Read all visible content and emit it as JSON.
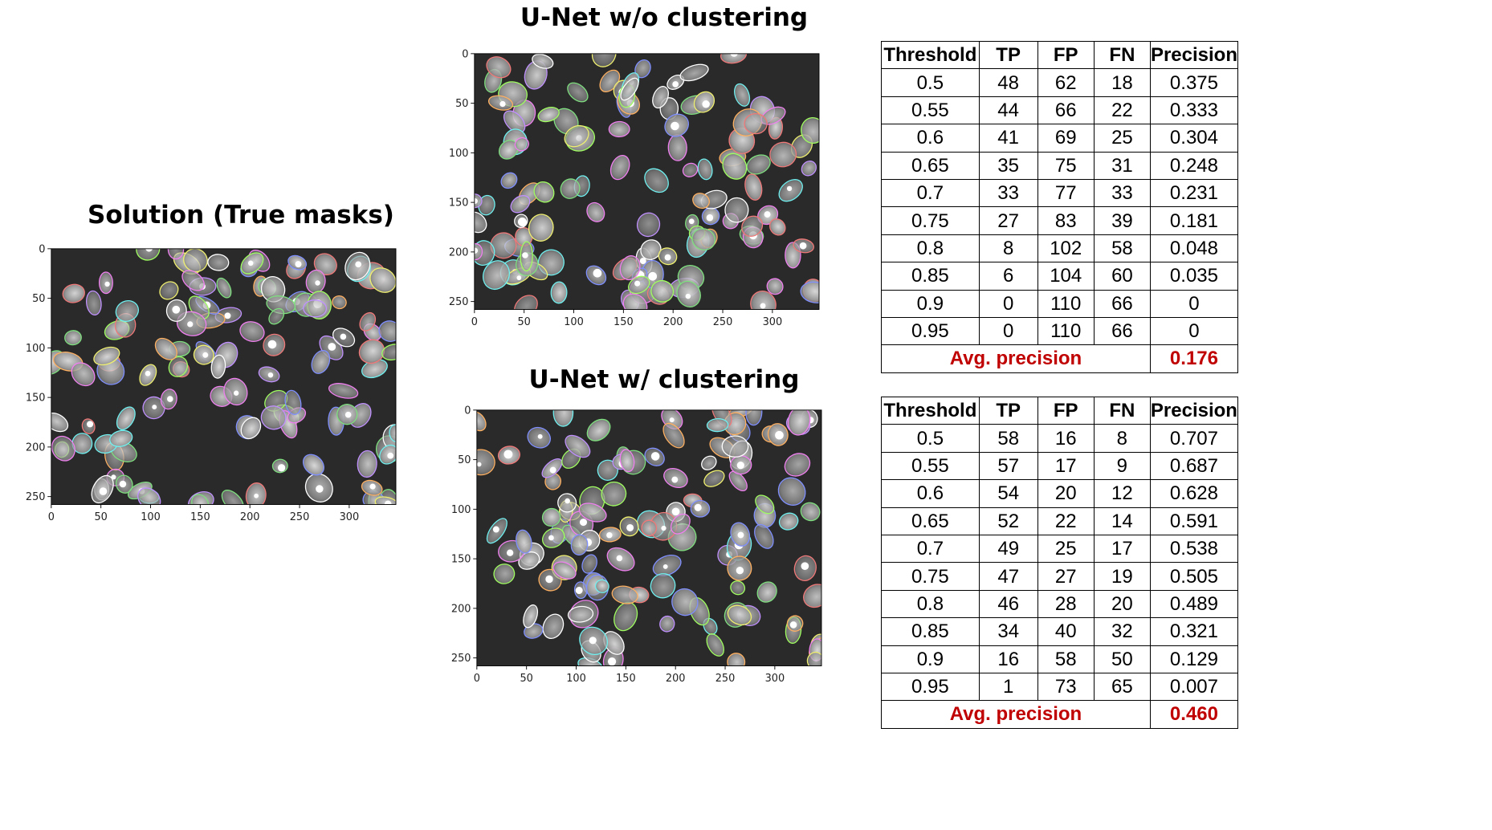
{
  "panels": [
    {
      "id": "solution",
      "title": "Solution (True masks)",
      "x_ticks": [
        "0",
        "50",
        "100",
        "150",
        "200",
        "250",
        "300"
      ],
      "y_ticks": [
        "0",
        "50",
        "100",
        "150",
        "200",
        "250"
      ]
    },
    {
      "id": "unet_no_clustering",
      "title": "U-Net w/o clustering",
      "x_ticks": [
        "0",
        "50",
        "100",
        "150",
        "200",
        "250",
        "300"
      ],
      "y_ticks": [
        "0",
        "50",
        "100",
        "150",
        "200",
        "250"
      ]
    },
    {
      "id": "unet_clustering",
      "title": "U-Net w/ clustering",
      "x_ticks": [
        "0",
        "50",
        "100",
        "150",
        "200",
        "250",
        "300"
      ],
      "y_ticks": [
        "0",
        "50",
        "100",
        "150",
        "200",
        "250"
      ]
    }
  ],
  "tables": [
    {
      "id": "table_no_clustering",
      "headers": [
        "Threshold",
        "TP",
        "FP",
        "FN",
        "Precision"
      ],
      "rows": [
        [
          "0.5",
          "48",
          "62",
          "18",
          "0.375"
        ],
        [
          "0.55",
          "44",
          "66",
          "22",
          "0.333"
        ],
        [
          "0.6",
          "41",
          "69",
          "25",
          "0.304"
        ],
        [
          "0.65",
          "35",
          "75",
          "31",
          "0.248"
        ],
        [
          "0.7",
          "33",
          "77",
          "33",
          "0.231"
        ],
        [
          "0.75",
          "27",
          "83",
          "39",
          "0.181"
        ],
        [
          "0.8",
          "8",
          "102",
          "58",
          "0.048"
        ],
        [
          "0.85",
          "6",
          "104",
          "60",
          "0.035"
        ],
        [
          "0.9",
          "0",
          "110",
          "66",
          "0"
        ],
        [
          "0.95",
          "0",
          "110",
          "66",
          "0"
        ]
      ],
      "avg_label": "Avg. precision",
      "avg_value": "0.176"
    },
    {
      "id": "table_clustering",
      "headers": [
        "Threshold",
        "TP",
        "FP",
        "FN",
        "Precision"
      ],
      "rows": [
        [
          "0.5",
          "58",
          "16",
          "8",
          "0.707"
        ],
        [
          "0.55",
          "57",
          "17",
          "9",
          "0.687"
        ],
        [
          "0.6",
          "54",
          "20",
          "12",
          "0.628"
        ],
        [
          "0.65",
          "52",
          "22",
          "14",
          "0.591"
        ],
        [
          "0.7",
          "49",
          "25",
          "17",
          "0.538"
        ],
        [
          "0.75",
          "47",
          "27",
          "19",
          "0.505"
        ],
        [
          "0.8",
          "46",
          "28",
          "20",
          "0.489"
        ],
        [
          "0.85",
          "34",
          "40",
          "32",
          "0.321"
        ],
        [
          "0.9",
          "16",
          "58",
          "50",
          "0.129"
        ],
        [
          "0.95",
          "1",
          "73",
          "65",
          "0.007"
        ]
      ],
      "avg_label": "Avg. precision",
      "avg_value": "0.460"
    }
  ],
  "colors": {
    "image_background": "#2a2a2a",
    "avg_text": "#c00000",
    "outline_palette": [
      "#f07878",
      "#7fe07f",
      "#7f8fff",
      "#f0f070",
      "#f080f0",
      "#70f0f0",
      "#ffb060",
      "#ffffff",
      "#c090ff",
      "#a0ff60"
    ]
  }
}
